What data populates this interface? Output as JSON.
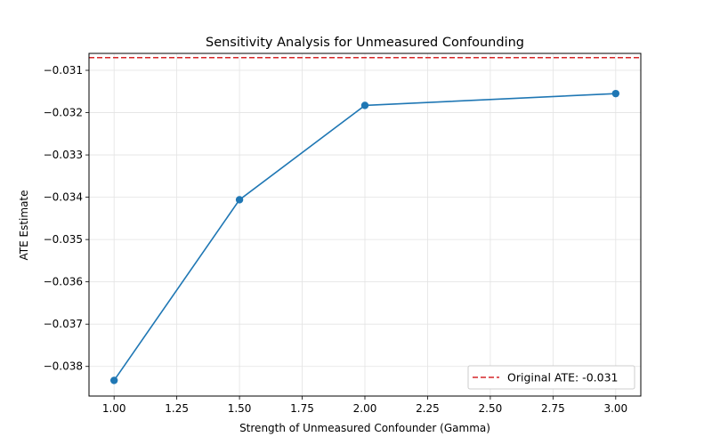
{
  "chart_data": {
    "type": "line",
    "title": "Sensitivity Analysis for Unmeasured Confounding",
    "xlabel": "Strength of Unmeasured Confounder (Gamma)",
    "ylabel": "ATE Estimate",
    "xlim": [
      0.9,
      3.1
    ],
    "ylim": [
      -0.0387,
      -0.0306
    ],
    "xticks": [
      1.0,
      1.25,
      1.5,
      1.75,
      2.0,
      2.25,
      2.5,
      2.75,
      3.0
    ],
    "xtick_labels": [
      "1.00",
      "1.25",
      "1.50",
      "1.75",
      "2.00",
      "2.25",
      "2.50",
      "2.75",
      "3.00"
    ],
    "yticks": [
      -0.031,
      -0.032,
      -0.033,
      -0.034,
      -0.035,
      -0.036,
      -0.037,
      -0.038
    ],
    "ytick_labels": [
      "−0.031",
      "−0.032",
      "−0.033",
      "−0.034",
      "−0.035",
      "−0.036",
      "−0.037",
      "−0.038"
    ],
    "grid": true,
    "series": [
      {
        "x": [
          1.0,
          1.5,
          2.0,
          3.0
        ],
        "y": [
          -0.03833,
          -0.03406,
          -0.03183,
          -0.03155
        ],
        "color": "#1f77b4",
        "marker": "circle"
      }
    ],
    "reference_line": {
      "orientation": "horizontal",
      "y": -0.0307,
      "color": "#d62728",
      "style": "dashed",
      "label": "Original ATE: -0.031"
    },
    "legend": {
      "placement": "bottom-right"
    }
  }
}
